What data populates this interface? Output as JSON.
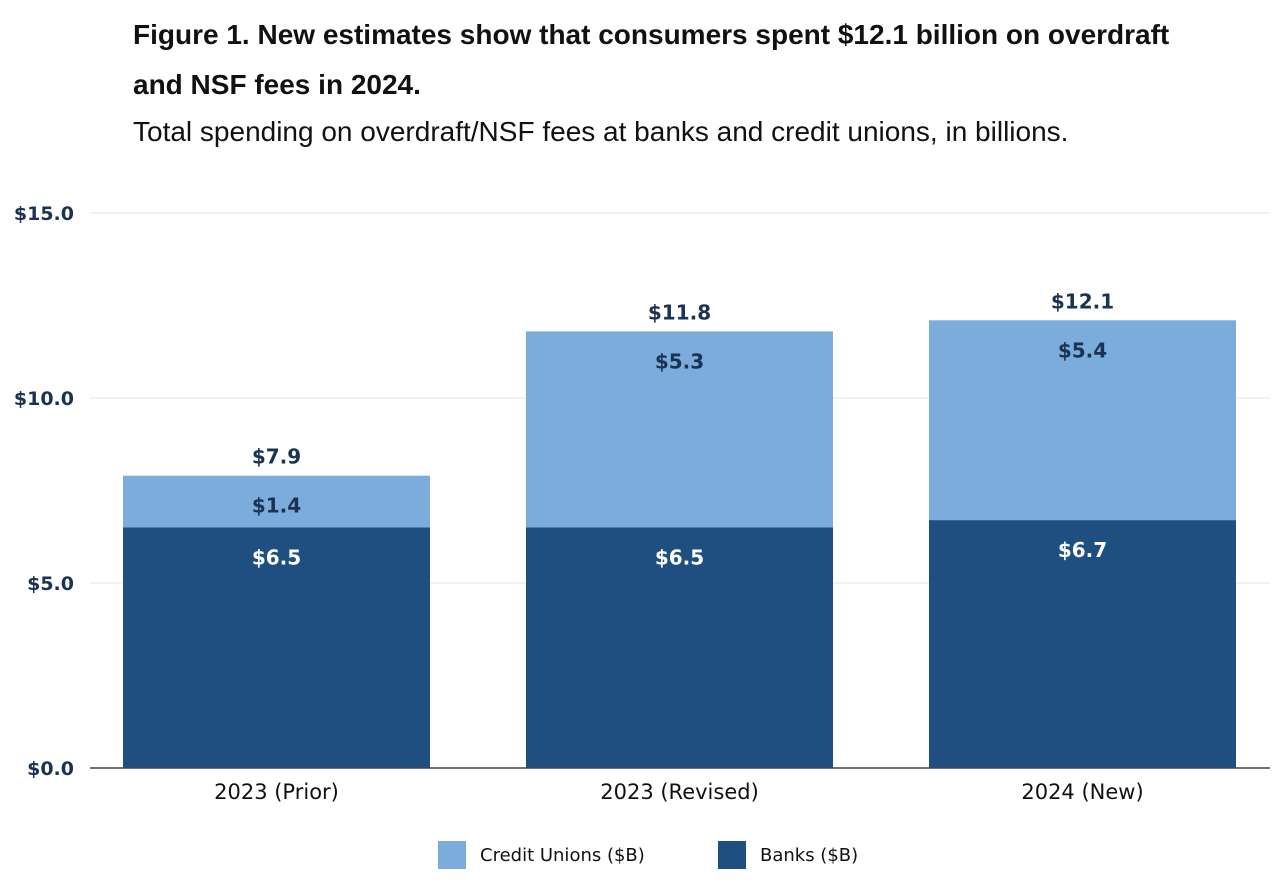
{
  "chart_data": {
    "type": "bar",
    "stacked": true,
    "title": "Figure 1. New estimates show that consumers spent $12.1 billion on overdraft and NSF fees in 2024.",
    "subtitle": "Total spending on overdraft/NSF fees at banks and credit unions, in billions.",
    "categories": [
      "2023 (Prior)",
      "2023 (Revised)",
      "2024 (New)"
    ],
    "series": [
      {
        "name": "Banks ($B)",
        "values": [
          6.5,
          6.5,
          6.7
        ],
        "labels": [
          "$6.5",
          "$6.5",
          "$6.7"
        ],
        "color": "#1f4e80"
      },
      {
        "name": "Credit Unions ($B)",
        "values": [
          1.4,
          5.3,
          5.4
        ],
        "labels": [
          "$1.4",
          "$5.3",
          "$5.4"
        ],
        "color": "#7bacdb"
      }
    ],
    "totals": [
      7.9,
      11.8,
      12.1
    ],
    "total_labels": [
      "$7.9",
      "$11.8",
      "$12.1"
    ],
    "ylim": [
      0,
      15
    ],
    "yticks": [
      0,
      5,
      10,
      15
    ],
    "ytick_labels": [
      "$0.0",
      "$5.0",
      "$10.0",
      "$15.0"
    ],
    "xlabel": "",
    "ylabel": "",
    "grid": true,
    "legend": {
      "position": "bottom",
      "items": [
        {
          "label": "Credit Unions ($B)",
          "color": "#7bacdb"
        },
        {
          "label": "Banks ($B)",
          "color": "#1f4e80"
        }
      ]
    },
    "colors": {
      "label_dark": "#1b3352",
      "gridline": "#e4e4e4",
      "axis": "#444444"
    }
  }
}
